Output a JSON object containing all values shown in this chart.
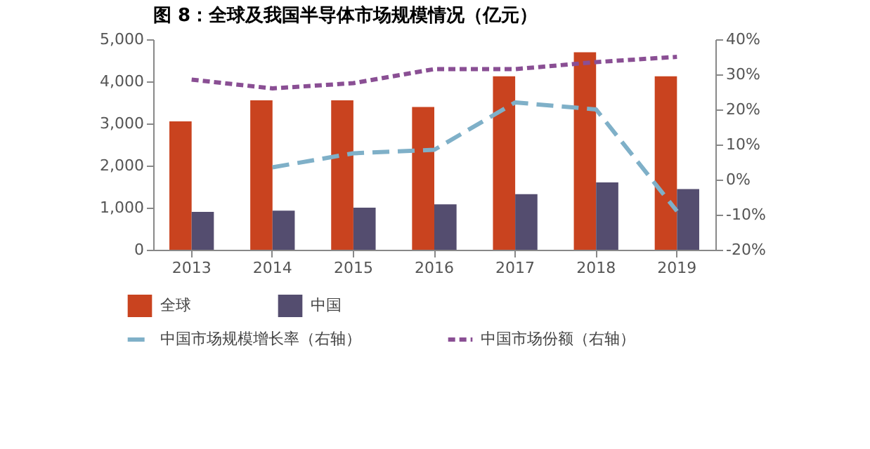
{
  "chart_data": {
    "type": "bar",
    "title": "图 8：全球及我国半导体市场规模情况（亿元）",
    "categories": [
      "2013",
      "2014",
      "2015",
      "2016",
      "2017",
      "2018",
      "2019"
    ],
    "series": [
      {
        "name": "全球",
        "color": "#c9431f",
        "values": [
          3050,
          3550,
          3550,
          3390,
          4120,
          4690,
          4120
        ]
      },
      {
        "name": "中国",
        "color": "#544d6f",
        "values": [
          900,
          930,
          1000,
          1080,
          1320,
          1600,
          1440
        ]
      },
      {
        "name": "中国市场规模增长率（右轴）",
        "type": "line",
        "axis": "y2",
        "line_style": "dashed",
        "color": "#7fb0c8",
        "values": [
          null,
          3.5,
          7.5,
          8.5,
          22,
          20,
          -9
        ]
      },
      {
        "name": "中国市场份额（右轴）",
        "type": "line",
        "axis": "y2",
        "line_style": "dotted",
        "color": "#8a4f94",
        "values": [
          28.5,
          26,
          27.5,
          31.5,
          31.5,
          33.5,
          35
        ]
      }
    ],
    "ylim": [
      0,
      5000
    ],
    "yticks": [
      {
        "value": 0,
        "label": "0"
      },
      {
        "value": 1000,
        "label": "1,000"
      },
      {
        "value": 2000,
        "label": "2,000"
      },
      {
        "value": 3000,
        "label": "3,000"
      },
      {
        "value": 4000,
        "label": "4,000"
      },
      {
        "value": 5000,
        "label": "5,000"
      }
    ],
    "y2lim": [
      -20,
      40
    ],
    "y2ticks": [
      {
        "value": -20,
        "label": "-20%"
      },
      {
        "value": -10,
        "label": "-10%"
      },
      {
        "value": 0,
        "label": "0%"
      },
      {
        "value": 10,
        "label": "10%"
      },
      {
        "value": 20,
        "label": "20%"
      },
      {
        "value": 30,
        "label": "30%"
      },
      {
        "value": 40,
        "label": "40%"
      }
    ],
    "grid": false,
    "legend": "bottom"
  }
}
